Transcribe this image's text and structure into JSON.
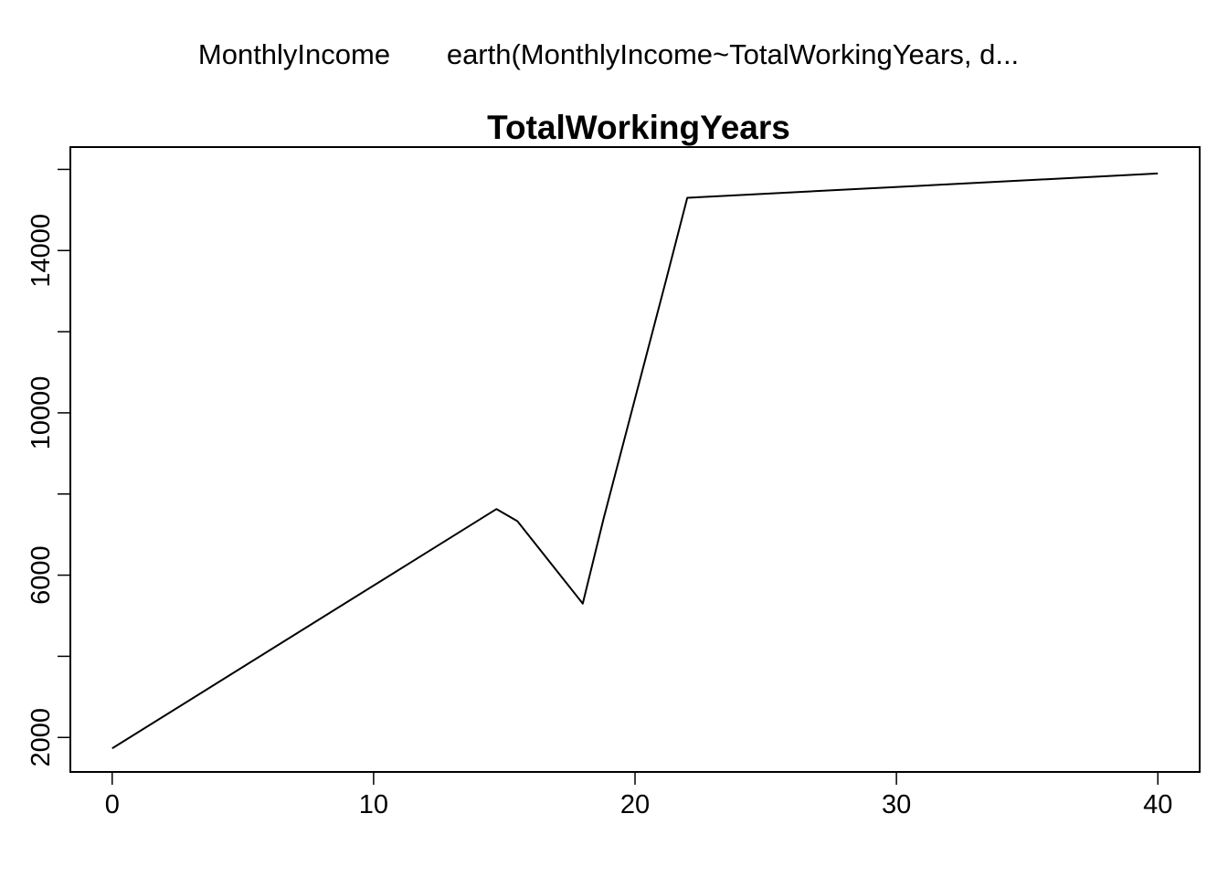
{
  "header": {
    "response_label": "MonthlyIncome",
    "model_label": "earth(MonthlyIncome~TotalWorkingYears, d..."
  },
  "chart_data": {
    "type": "line",
    "title": "TotalWorkingYears",
    "xlabel": "",
    "ylabel": "",
    "xlim": [
      -1.6,
      41.6
    ],
    "ylim": [
      1150,
      16550
    ],
    "x_ticks": [
      0,
      10,
      20,
      30,
      40
    ],
    "x_tick_labels": [
      "0",
      "10",
      "20",
      "30",
      "40"
    ],
    "y_ticks": [
      2000,
      4000,
      6000,
      8000,
      10000,
      12000,
      14000,
      16000
    ],
    "y_tick_labels": [
      "2000",
      "",
      "6000",
      "",
      "10000",
      "",
      "14000",
      ""
    ],
    "grid": false,
    "line_color": "#000000",
    "series": [
      {
        "x": [
          0,
          14.7,
          15.5,
          18,
          18.8,
          21.2,
          22,
          40
        ],
        "y": [
          1730,
          7630,
          7330,
          5300,
          7400,
          13300,
          15300,
          15900
        ]
      }
    ]
  }
}
